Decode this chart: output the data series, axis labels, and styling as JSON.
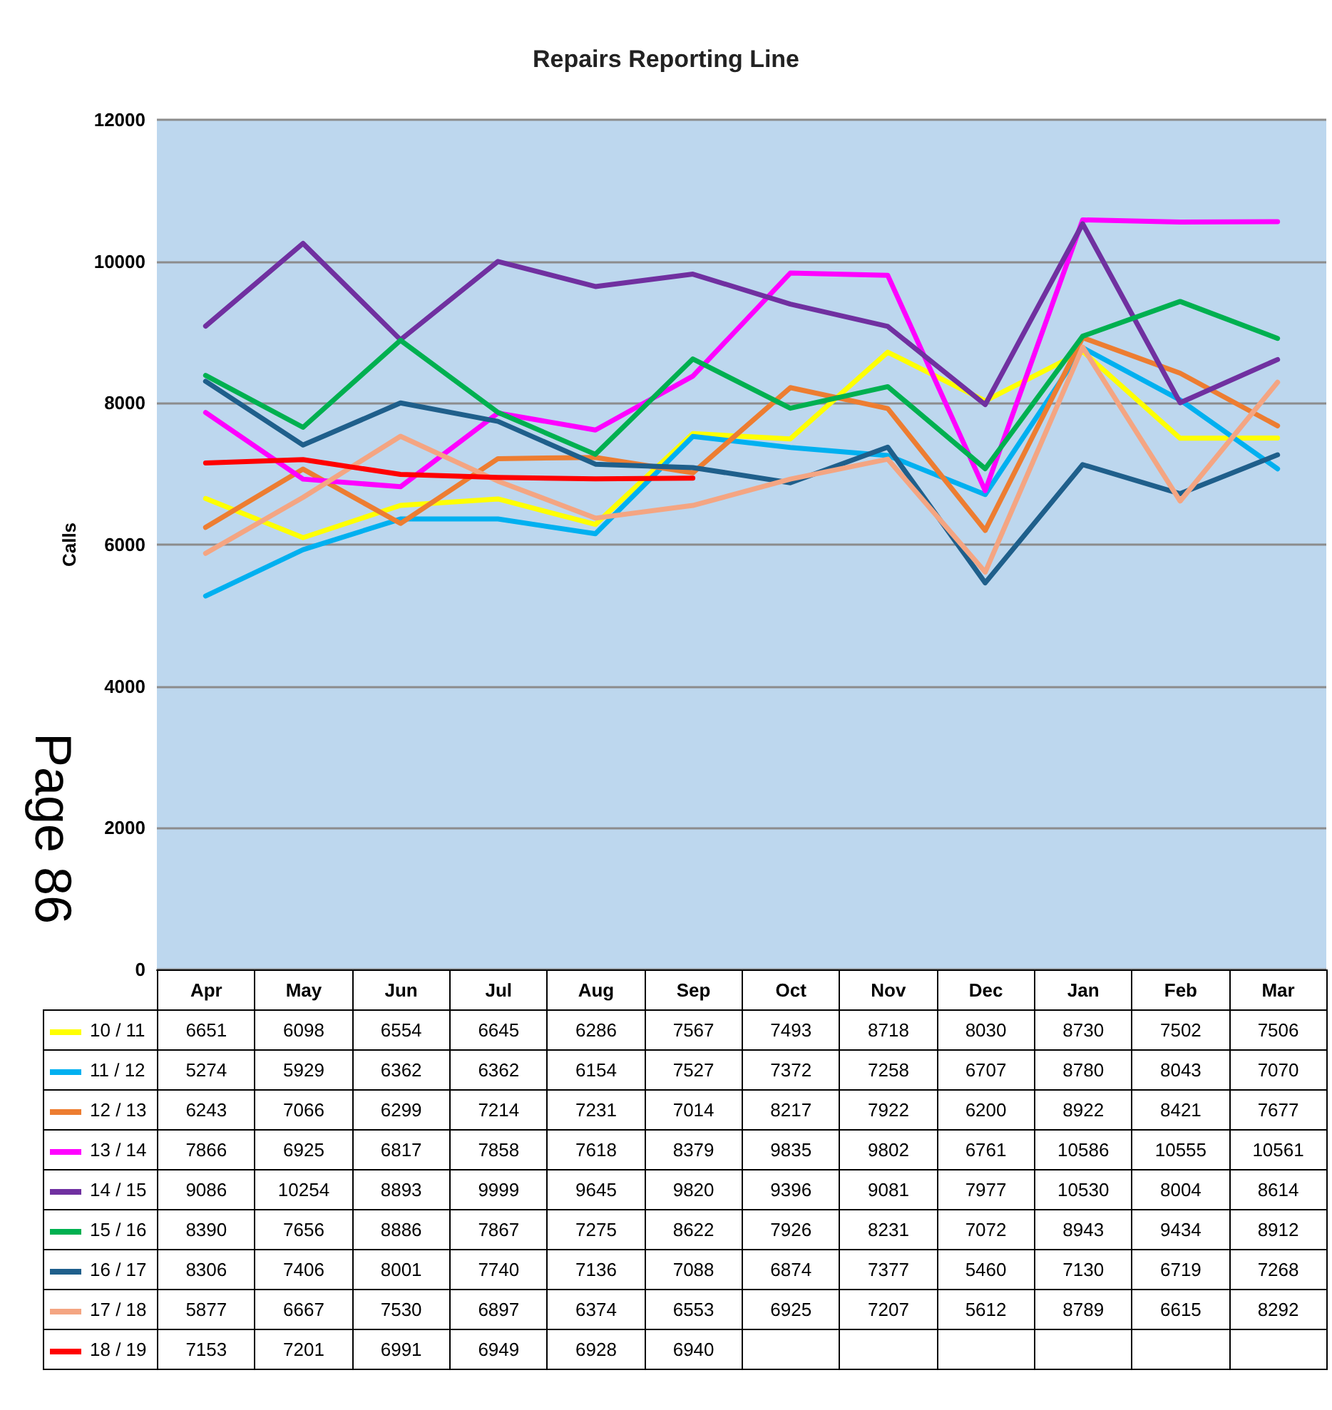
{
  "chart_data": {
    "type": "line",
    "title": "Repairs Reporting Line",
    "ylabel": "Calls",
    "categories": [
      "Apr",
      "May",
      "Jun",
      "Jul",
      "Aug",
      "Sep",
      "Oct",
      "Nov",
      "Dec",
      "Jan",
      "Feb",
      "Mar"
    ],
    "series": [
      {
        "name": "10 / 11",
        "color": "#ffff00",
        "values": [
          6651,
          6098,
          6554,
          6645,
          6286,
          7567,
          7493,
          8718,
          8030,
          8730,
          7502,
          7506
        ]
      },
      {
        "name": "11 / 12",
        "color": "#00b0f0",
        "values": [
          5274,
          5929,
          6362,
          6362,
          6154,
          7527,
          7372,
          7258,
          6707,
          8780,
          8043,
          7070
        ]
      },
      {
        "name": "12 / 13",
        "color": "#ed7d31",
        "values": [
          6243,
          7066,
          6299,
          7214,
          7231,
          7014,
          8217,
          7922,
          6200,
          8922,
          8421,
          7677
        ]
      },
      {
        "name": "13 / 14",
        "color": "#ff00ff",
        "values": [
          7866,
          6925,
          6817,
          7858,
          7618,
          8379,
          9835,
          9802,
          6761,
          10586,
          10555,
          10561
        ]
      },
      {
        "name": "14 / 15",
        "color": "#7030a0",
        "values": [
          9086,
          10254,
          8893,
          9999,
          9645,
          9820,
          9396,
          9081,
          7977,
          10530,
          8004,
          8614
        ]
      },
      {
        "name": "15 / 16",
        "color": "#00b050",
        "values": [
          8390,
          7656,
          8886,
          7867,
          7275,
          8622,
          7926,
          8231,
          7072,
          8943,
          9434,
          8912
        ]
      },
      {
        "name": "16 / 17",
        "color": "#1f5f8b",
        "values": [
          8306,
          7406,
          8001,
          7740,
          7136,
          7088,
          6874,
          7377,
          5460,
          7130,
          6719,
          7268
        ]
      },
      {
        "name": "17 / 18",
        "color": "#f4a582",
        "values": [
          5877,
          6667,
          7530,
          6897,
          6374,
          6553,
          6925,
          7207,
          5612,
          8789,
          6615,
          8292
        ]
      },
      {
        "name": "18 / 19",
        "color": "#ff0000",
        "values": [
          7153,
          7201,
          6991,
          6949,
          6928,
          6940,
          null,
          null,
          null,
          null,
          null,
          null
        ]
      }
    ],
    "ylim": [
      0,
      12000
    ],
    "yticks": [
      0,
      2000,
      4000,
      6000,
      8000,
      10000,
      12000
    ],
    "grid": "y",
    "legend": "bottom",
    "marker": "none",
    "line_style": "solid",
    "data_labels": true,
    "annotations": [
      "Page 86"
    ]
  }
}
